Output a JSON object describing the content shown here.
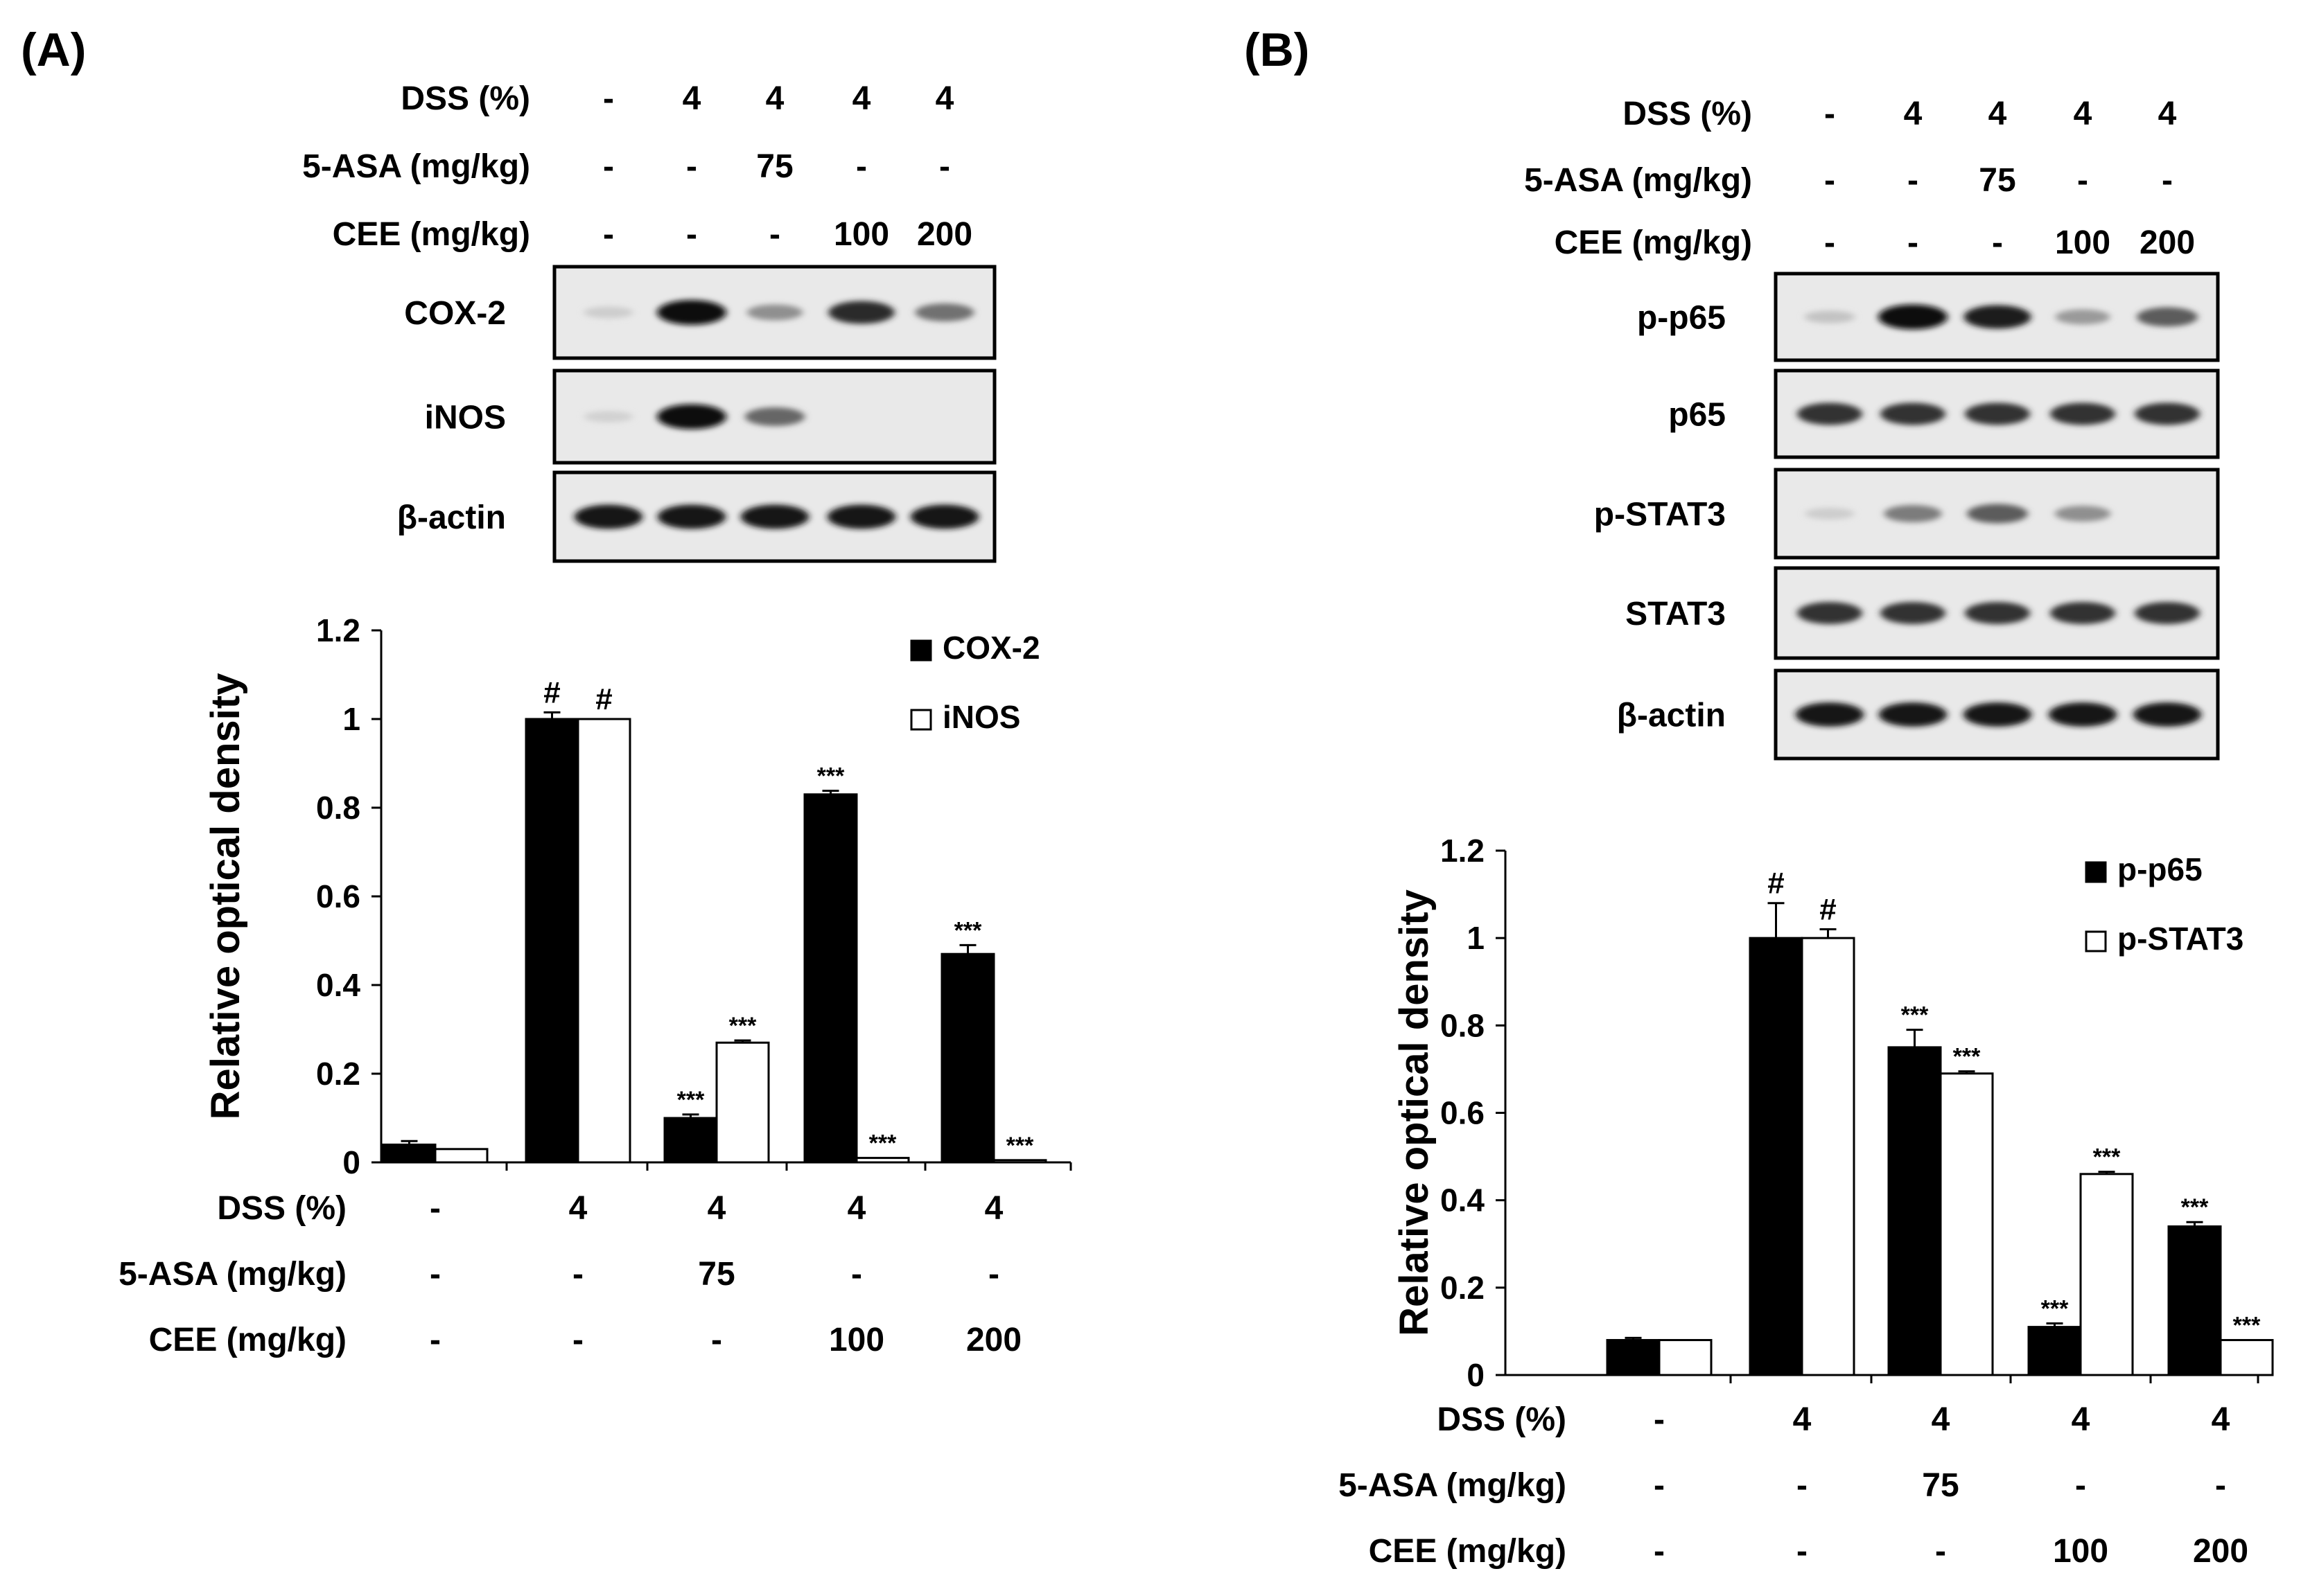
{
  "panels": [
    {
      "id": "A",
      "label": "(A)",
      "blot": {
        "conditions": [
          {
            "label": "DSS (%)",
            "values": [
              "-",
              "4",
              "4",
              "4",
              "4"
            ]
          },
          {
            "label": "5-ASA (mg/kg)",
            "values": [
              "-",
              "-",
              "75",
              "-",
              "-"
            ]
          },
          {
            "label": "CEE (mg/kg)",
            "values": [
              "-",
              "-",
              "-",
              "100",
              "200"
            ]
          }
        ],
        "strips": [
          {
            "label": "COX-2",
            "intensity": [
              0.05,
              1.0,
              0.35,
              0.85,
              0.5
            ]
          },
          {
            "label": "iNOS",
            "intensity": [
              0.03,
              1.0,
              0.55,
              0.0,
              0.0
            ]
          },
          {
            "label": "β-actin",
            "intensity": [
              0.95,
              0.95,
              0.95,
              0.95,
              0.95
            ]
          }
        ]
      },
      "chart_data": {
        "type": "bar",
        "ylabel": "Relative optical density",
        "ylim": [
          0,
          1.2
        ],
        "yticks": [
          "0",
          "0.2",
          "0.4",
          "0.6",
          "0.8",
          "1",
          "1.2"
        ],
        "legend_position": "top-right",
        "series": [
          {
            "name": "COX-2",
            "color": "#000000",
            "values": [
              0.04,
              1.0,
              0.1,
              0.83,
              0.47
            ],
            "errors": [
              0.008,
              0.015,
              0.008,
              0.008,
              0.02
            ],
            "annotations": [
              "",
              "#",
              "***",
              "***",
              "***"
            ]
          },
          {
            "name": "iNOS",
            "color": "#ffffff",
            "values": [
              0.03,
              1.0,
              0.27,
              0.01,
              0.005
            ],
            "errors": [
              0.0,
              0.0,
              0.005,
              0.0,
              0.0
            ],
            "annotations": [
              "",
              "#",
              "***",
              "***",
              "***"
            ]
          }
        ],
        "conditions": [
          {
            "label": "DSS (%)",
            "values": [
              "-",
              "4",
              "4",
              "4",
              "4"
            ]
          },
          {
            "label": "5-ASA (mg/kg)",
            "values": [
              "-",
              "-",
              "75",
              "-",
              "-"
            ]
          },
          {
            "label": "CEE (mg/kg)",
            "values": [
              "-",
              "-",
              "-",
              "100",
              "200"
            ]
          }
        ]
      }
    },
    {
      "id": "B",
      "label": "(B)",
      "blot": {
        "conditions": [
          {
            "label": "DSS (%)",
            "values": [
              "-",
              "4",
              "4",
              "4",
              "4"
            ]
          },
          {
            "label": "5-ASA (mg/kg)",
            "values": [
              "-",
              "-",
              "75",
              "-",
              "-"
            ]
          },
          {
            "label": "CEE (mg/kg)",
            "values": [
              "-",
              "-",
              "-",
              "100",
              "200"
            ]
          }
        ],
        "strips": [
          {
            "label": "p-p65",
            "intensity": [
              0.1,
              1.0,
              0.9,
              0.3,
              0.6
            ]
          },
          {
            "label": "p65",
            "intensity": [
              0.8,
              0.8,
              0.8,
              0.8,
              0.8
            ]
          },
          {
            "label": "p-STAT3",
            "intensity": [
              0.05,
              0.45,
              0.6,
              0.35,
              0.0
            ]
          },
          {
            "label": "STAT3",
            "intensity": [
              0.8,
              0.8,
              0.8,
              0.8,
              0.8
            ]
          },
          {
            "label": "β-actin",
            "intensity": [
              0.95,
              0.95,
              0.95,
              0.95,
              0.95
            ]
          }
        ]
      },
      "chart_data": {
        "type": "bar",
        "ylabel": "Relative optical density",
        "ylim": [
          0,
          1.2
        ],
        "yticks": [
          "0",
          "0.2",
          "0.4",
          "0.6",
          "0.8",
          "1",
          "1.2"
        ],
        "legend_position": "top-right",
        "series": [
          {
            "name": "p-p65",
            "color": "#000000",
            "values": [
              0.08,
              1.0,
              0.75,
              0.11,
              0.34
            ],
            "errors": [
              0.005,
              0.08,
              0.04,
              0.008,
              0.01
            ],
            "annotations": [
              "",
              "#",
              "***",
              "***",
              "***"
            ]
          },
          {
            "name": "p-STAT3",
            "color": "#ffffff",
            "values": [
              0.08,
              1.0,
              0.69,
              0.46,
              0.08
            ],
            "errors": [
              0.0,
              0.02,
              0.005,
              0.005,
              0.0
            ],
            "annotations": [
              "",
              "#",
              "***",
              "***",
              "***"
            ]
          }
        ],
        "conditions": [
          {
            "label": "DSS (%)",
            "values": [
              "-",
              "4",
              "4",
              "4",
              "4"
            ]
          },
          {
            "label": "5-ASA (mg/kg)",
            "values": [
              "-",
              "-",
              "75",
              "-",
              "-"
            ]
          },
          {
            "label": "CEE (mg/kg)",
            "values": [
              "-",
              "-",
              "-",
              "100",
              "200"
            ]
          }
        ]
      }
    }
  ]
}
